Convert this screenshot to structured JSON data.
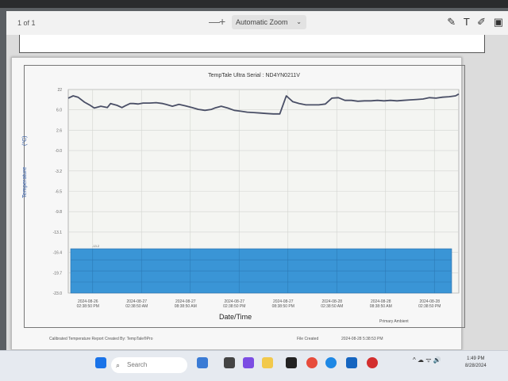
{
  "viewer": {
    "page_indicator": "1 of 1",
    "zoom_out": "—",
    "zoom_in": "+",
    "zoom_value": "Automatic Zoom",
    "tools": [
      "✎",
      "T",
      "✐",
      "▣"
    ]
  },
  "chart_data": {
    "type": "line",
    "title": "TempTale Ultra  Serial : ND4YN0211V",
    "xlabel": "Date/Time",
    "ylabel": "Temperature",
    "yunit": "(°C)",
    "y_tick_labels": [
      "22",
      "6.0",
      "2.6",
      "-0.0",
      "-3.2",
      "-6.5",
      "-9.8",
      "-13.1",
      "-16.4",
      "-19.7",
      "-23.0"
    ],
    "ylim": [
      -23.0,
      22
    ],
    "x_tick_labels": [
      [
        "2024-08-26",
        "02:38:50 PM"
      ],
      [
        "2024-08-27",
        "02:38:50 AM"
      ],
      [
        "2024-08-27",
        "08:38:50 AM"
      ],
      [
        "2024-08-27",
        "02:38:50 PM"
      ],
      [
        "2024-08-27",
        "08:38:50 PM"
      ],
      [
        "2024-08-28",
        "02:38:50 AM"
      ],
      [
        "2024-08-28",
        "08:38:50 AM"
      ],
      [
        "2024-08-28",
        "02:38:50 PM"
      ]
    ],
    "band_label": "-13.2",
    "band_range": [
      -13.2,
      -23.0
    ],
    "band_color": "#3a95d6",
    "line_color": "#4a4f66",
    "grid": true,
    "series": [
      {
        "x": [
          0,
          0.3,
          0.6,
          1.0,
          1.3,
          1.6,
          2.0,
          2.4,
          2.6,
          3.0,
          3.3,
          3.5,
          3.8,
          4.0,
          4.3,
          4.6,
          5.0,
          5.4,
          5.8,
          6.0,
          6.4,
          6.8,
          7.2,
          7.6,
          8.0,
          8.4,
          8.8,
          9.0,
          9.4,
          9.8,
          10.2,
          10.6,
          11.0,
          11.4,
          11.8,
          12.2,
          12.6,
          13.0,
          13.4,
          13.8,
          14.2,
          14.6,
          15.0,
          15.4,
          15.8,
          16.2,
          16.6,
          17.0,
          17.4,
          17.8,
          18.2,
          18.6,
          19.0,
          19.4,
          19.8,
          20.2,
          20.6,
          21.0,
          21.4,
          21.8,
          22.2,
          22.6,
          23.0,
          23.4,
          23.8,
          24.0
        ],
        "y": [
          20.1,
          20.6,
          20.3,
          19.2,
          18.6,
          17.9,
          18.3,
          18.0,
          18.9,
          18.5,
          18.0,
          18.4,
          18.9,
          18.9,
          18.8,
          19.0,
          19.0,
          19.1,
          18.9,
          18.7,
          18.3,
          18.7,
          18.4,
          18.0,
          17.6,
          17.4,
          17.6,
          17.9,
          18.3,
          17.9,
          17.4,
          17.2,
          17.0,
          16.9,
          16.8,
          16.7,
          16.6,
          16.6,
          20.6,
          19.3,
          18.9,
          18.6,
          18.6,
          18.6,
          18.8,
          20.1,
          20.2,
          19.6,
          19.6,
          19.4,
          19.5,
          19.5,
          19.6,
          19.5,
          19.6,
          19.5,
          19.6,
          19.7,
          19.8,
          19.9,
          20.2,
          20.1,
          20.3,
          20.4,
          20.6,
          21.0
        ]
      }
    ]
  },
  "footer": {
    "legend": "Primary  Ambient",
    "left": "Calibrated Temperature Report Created By: TempTale®Pro",
    "middle": "File Created",
    "right": "2024-08-28  5:38:53 PM"
  },
  "taskbar": {
    "search_placeholder": "Search",
    "tray_icons": "^  ☁  ᯤ  🔊",
    "time": "1:49 PM",
    "date": "8/28/2024"
  }
}
